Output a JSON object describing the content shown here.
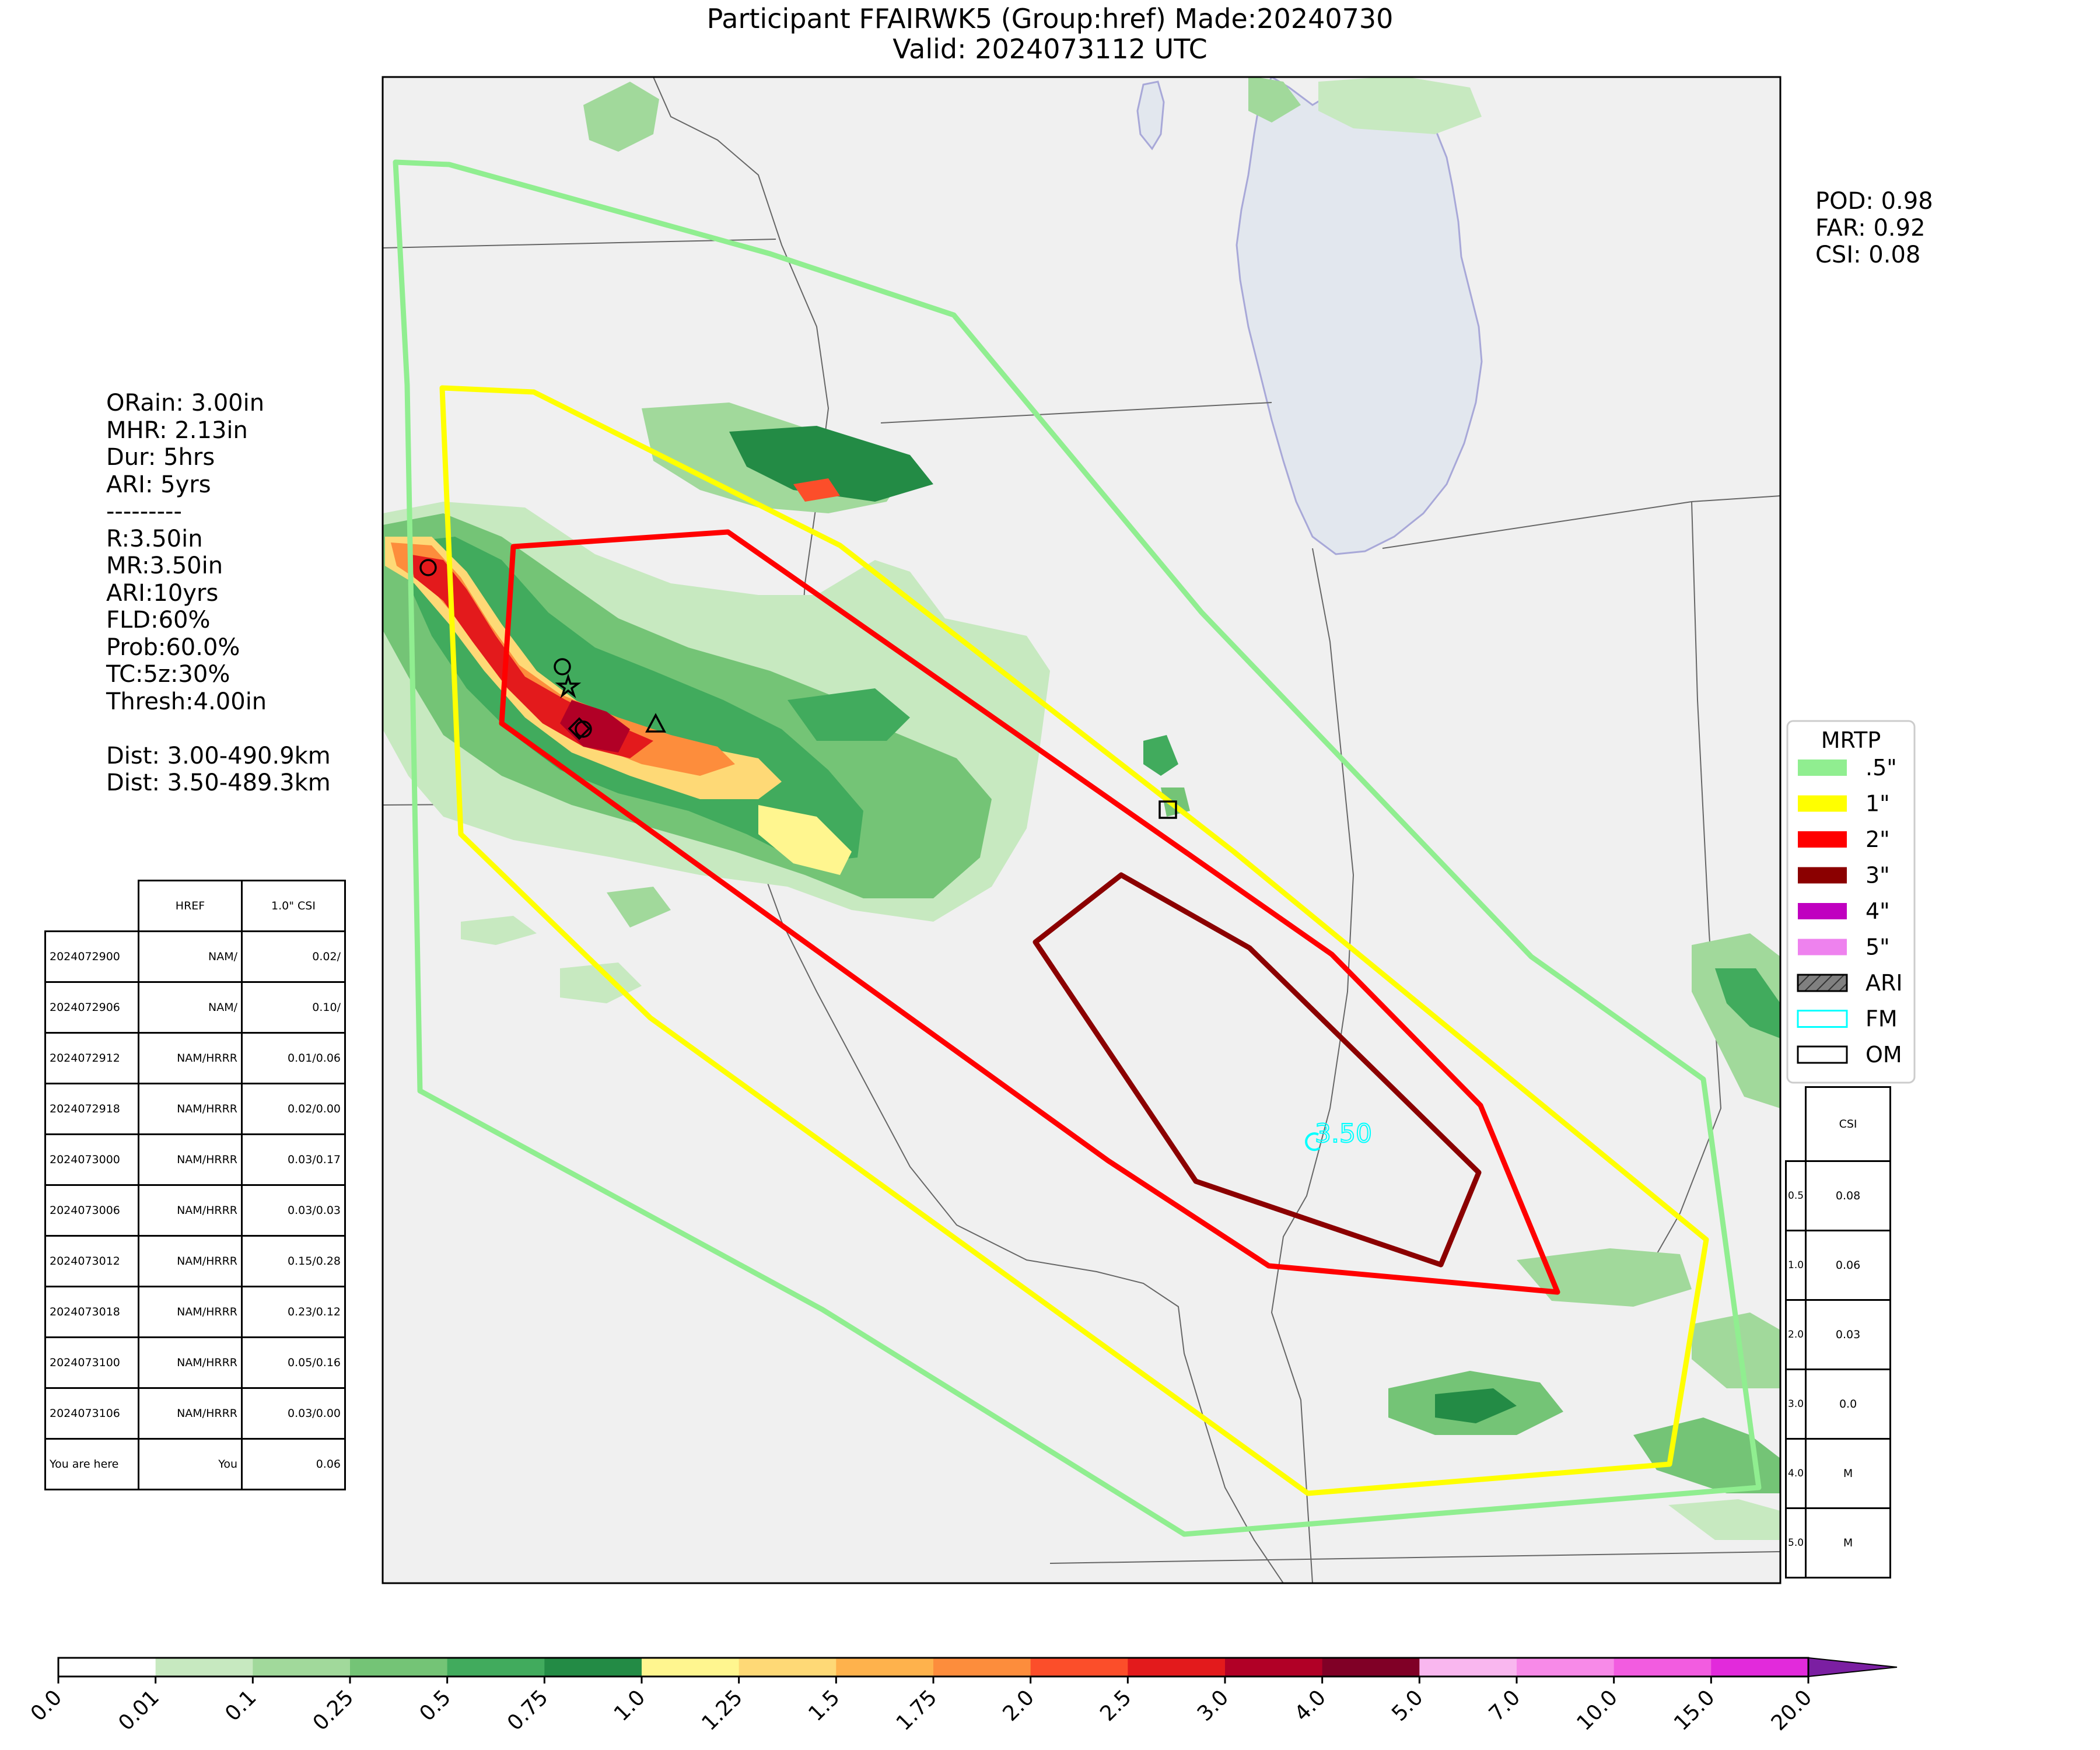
{
  "title_line1": "Participant FFAIRWK5 (Group:href) Made:20240730",
  "title_line2": "Valid: 2024073112 UTC",
  "stats": {
    "pod": "POD: 0.98",
    "far": "FAR: 0.92",
    "csi": "CSI: 0.08"
  },
  "info_lines": [
    "ORain: 3.00in",
    "MHR: 2.13in",
    "Dur: 5hrs",
    "ARI: 5yrs",
    "---------",
    "R:3.50in",
    "MR:3.50in",
    "ARI:10yrs",
    "FLD:60%",
    "Prob:60.0%",
    "TC:5z:30%",
    "Thresh:4.00in",
    "",
    "Dist: 3.00-490.9km",
    "Dist: 3.50-489.3km"
  ],
  "history_table": {
    "headers": [
      "",
      "HREF",
      "1.0\" CSI"
    ],
    "rows": [
      [
        "2024072900",
        "NAM/",
        "0.02/"
      ],
      [
        "2024072906",
        "NAM/",
        "0.10/"
      ],
      [
        "2024072912",
        "NAM/HRRR",
        "0.01/0.06"
      ],
      [
        "2024072918",
        "NAM/HRRR",
        "0.02/0.00"
      ],
      [
        "2024073000",
        "NAM/HRRR",
        "0.03/0.17"
      ],
      [
        "2024073006",
        "NAM/HRRR",
        "0.03/0.03"
      ],
      [
        "2024073012",
        "NAM/HRRR",
        "0.15/0.28"
      ],
      [
        "2024073018",
        "NAM/HRRR",
        "0.23/0.12"
      ],
      [
        "2024073100",
        "NAM/HRRR",
        "0.05/0.16"
      ],
      [
        "2024073106",
        "NAM/HRRR",
        "0.03/0.00"
      ],
      [
        "You are here",
        "You",
        "0.06"
      ]
    ]
  },
  "csi_table": {
    "header": "CSI",
    "rows": [
      [
        "0.5",
        "0.08"
      ],
      [
        "1.0",
        "0.06"
      ],
      [
        "2.0",
        "0.03"
      ],
      [
        "3.0",
        "0.0"
      ],
      [
        "4.0",
        "M"
      ],
      [
        "5.0",
        "M"
      ]
    ]
  },
  "legend": {
    "title": "MRTP",
    "items": [
      {
        "label": ".5\"",
        "color": "#90ee90",
        "kind": "fill"
      },
      {
        "label": "1\"",
        "color": "#ffff00",
        "kind": "fill"
      },
      {
        "label": "2\"",
        "color": "#ff0000",
        "kind": "fill"
      },
      {
        "label": "3\"",
        "color": "#8b0000",
        "kind": "fill"
      },
      {
        "label": "4\"",
        "color": "#c000c0",
        "kind": "fill"
      },
      {
        "label": "5\"",
        "color": "#ee82ee",
        "kind": "fill"
      },
      {
        "label": "ARI",
        "color": "#808080",
        "kind": "hatch"
      },
      {
        "label": "FM",
        "color": "#00ffff",
        "kind": "outline"
      },
      {
        "label": "OM",
        "color": "#000000",
        "kind": "outline"
      }
    ]
  },
  "map_label": "3.50",
  "colorbar": {
    "ticks": [
      "0.0",
      "0.01",
      "0.1",
      "0.25",
      "0.5",
      "0.75",
      "1.0",
      "1.25",
      "1.5",
      "1.75",
      "2.0",
      "2.5",
      "3.0",
      "4.0",
      "5.0",
      "7.0",
      "10.0",
      "15.0",
      "20.0"
    ],
    "colors": [
      "#ffffff",
      "#c7e9c0",
      "#a1d99b",
      "#74c476",
      "#41ab5d",
      "#238b45",
      "#fff68f",
      "#fed976",
      "#feb24c",
      "#fd8d3c",
      "#fc4e2a",
      "#e31a1c",
      "#b10026",
      "#800026",
      "#f9b7ef",
      "#f78ae8",
      "#f25ce0",
      "#e22adb",
      "#9b18c7"
    ]
  }
}
